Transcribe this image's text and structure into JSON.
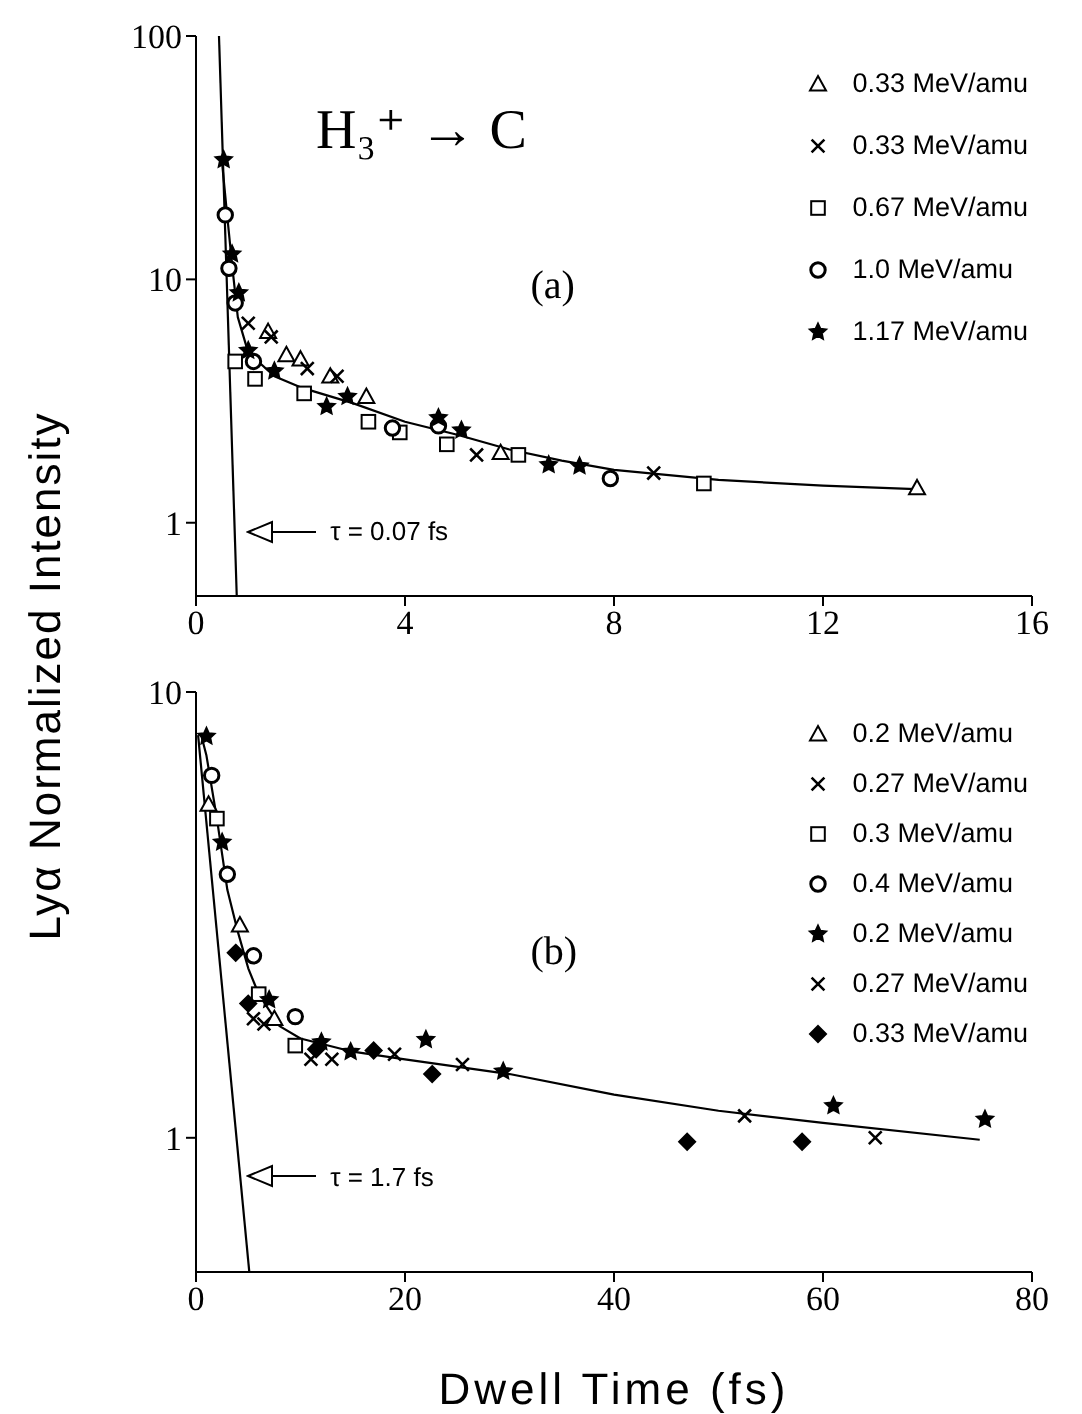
{
  "chart_data": [
    {
      "type": "scatter",
      "title": "H₃⁺ → C",
      "ylabel": "Lyα Normalized Intensity",
      "legend": "top right",
      "log": "y",
      "xlim": [
        0,
        16
      ],
      "xticks": [
        0,
        4,
        8,
        12,
        16
      ],
      "ylim": [
        0.5,
        100
      ],
      "yticks": [
        1,
        10,
        100
      ],
      "annotations": [
        "(a)",
        "τ = 0.07 fs"
      ],
      "series": [
        {
          "name": "0.33 MeV/amu",
          "color": "#000000",
          "marker": "triangle",
          "x": [
            1.38,
            1.73,
            2.0,
            2.57,
            3.26,
            5.83,
            13.8
          ],
          "values": [
            6.1,
            4.9,
            4.7,
            4.0,
            3.3,
            1.94,
            1.39
          ]
        },
        {
          "name": "0.33 MeV/amu",
          "color": "#000000",
          "marker": "cross",
          "x": [
            1.0,
            1.44,
            2.13,
            2.7,
            5.37,
            8.76
          ],
          "values": [
            6.6,
            5.8,
            4.3,
            4.0,
            1.9,
            1.6
          ]
        },
        {
          "name": "0.67 MeV/amu",
          "color": "#000000",
          "marker": "square",
          "x": [
            0.75,
            1.13,
            2.07,
            3.3,
            3.9,
            4.8,
            6.17,
            9.72
          ],
          "values": [
            4.6,
            3.9,
            3.4,
            2.6,
            2.35,
            2.1,
            1.9,
            1.45
          ]
        },
        {
          "name": "1.0 MeV/amu",
          "color": "#000000",
          "marker": "circle",
          "x": [
            0.56,
            0.63,
            0.75,
            1.1,
            3.76,
            4.64,
            7.93
          ],
          "values": [
            18.4,
            11.1,
            8.0,
            4.6,
            2.45,
            2.5,
            1.52
          ]
        },
        {
          "name": "1.17 MeV/amu",
          "color": "#000000",
          "marker": "star",
          "x": [
            0.53,
            0.69,
            0.82,
            1.0,
            1.5,
            2.5,
            2.9,
            4.64,
            5.08,
            6.75,
            7.34
          ],
          "values": [
            31,
            12.7,
            8.8,
            5.1,
            4.2,
            3.0,
            3.3,
            2.7,
            2.4,
            1.73,
            1.71
          ]
        },
        {
          "type": "line",
          "color": "#000000",
          "marker": "none",
          "x": [
            0.5,
            0.6,
            0.7,
            0.8,
            1,
            1.5,
            2,
            3,
            4,
            5,
            6,
            7,
            8,
            10,
            12,
            13.9
          ],
          "values": [
            30,
            18,
            11,
            7,
            5,
            4,
            3.6,
            3.1,
            2.6,
            2.3,
            2.0,
            1.8,
            1.65,
            1.5,
            1.42,
            1.37
          ]
        },
        {
          "type": "line",
          "color": "#000000",
          "marker": "none",
          "x": [
            0.44,
            0.78
          ],
          "values": [
            100,
            0.5
          ]
        }
      ]
    },
    {
      "type": "scatter",
      "xlabel": "Dwell Time (fs)",
      "legend": "top right",
      "log": "y",
      "xlim": [
        0,
        80
      ],
      "xticks": [
        0,
        20,
        40,
        60,
        80
      ],
      "ylim": [
        0.5,
        10
      ],
      "yticks": [
        1,
        10
      ],
      "annotations": [
        "(b)",
        "τ = 1.7 fs"
      ],
      "series": [
        {
          "name": "0.2 MeV/amu",
          "color": "#000000",
          "marker": "triangle",
          "x": [
            1.2,
            4.2,
            7.5
          ],
          "values": [
            5.6,
            3.0,
            1.85
          ]
        },
        {
          "name": "0.27 MeV/amu",
          "color": "#000000",
          "marker": "cross",
          "x": [
            5.5,
            6.5,
            11,
            13
          ],
          "values": [
            1.85,
            1.8,
            1.5,
            1.5
          ]
        },
        {
          "name": "0.3 MeV/amu",
          "color": "#000000",
          "marker": "square",
          "x": [
            2,
            6,
            9.5
          ],
          "values": [
            5.2,
            2.1,
            1.61
          ]
        },
        {
          "name": "0.4 MeV/amu",
          "color": "#000000",
          "marker": "circle",
          "x": [
            1.5,
            3,
            5.5,
            9.5
          ],
          "values": [
            6.5,
            3.9,
            2.56,
            1.87
          ]
        },
        {
          "name": "0.2 MeV/amu",
          "color": "#000000",
          "marker": "star",
          "x": [
            1,
            2.5,
            7,
            12,
            14.8,
            22,
            29.4,
            61,
            75.5
          ],
          "values": [
            7.95,
            4.6,
            2.04,
            1.64,
            1.56,
            1.66,
            1.41,
            1.18,
            1.1
          ]
        },
        {
          "name": "0.27 MeV/amu",
          "color": "#000000",
          "marker": "cross",
          "x": [
            19,
            25.5,
            52.5,
            65
          ],
          "values": [
            1.54,
            1.46,
            1.12,
            1.0
          ]
        },
        {
          "name": "0.33 MeV/amu",
          "color": "#000000",
          "marker": "diamond",
          "x": [
            3.8,
            5,
            11.5,
            17,
            22.6,
            47,
            58
          ],
          "values": [
            2.6,
            2.0,
            1.58,
            1.57,
            1.39,
            0.98,
            0.98
          ]
        },
        {
          "type": "line",
          "color": "#000000",
          "marker": "none",
          "x": [
            0.5,
            1,
            2,
            3,
            4,
            5,
            6,
            8,
            10,
            15,
            20,
            30,
            40,
            50,
            60,
            75
          ],
          "values": [
            8,
            7.2,
            5.2,
            3.6,
            2.9,
            2.4,
            2.1,
            1.78,
            1.67,
            1.56,
            1.5,
            1.39,
            1.25,
            1.15,
            1.08,
            0.99
          ]
        },
        {
          "type": "line",
          "color": "#000000",
          "marker": "none",
          "x": [
            0.2,
            5.1
          ],
          "values": [
            8,
            0.5
          ]
        }
      ]
    }
  ]
}
